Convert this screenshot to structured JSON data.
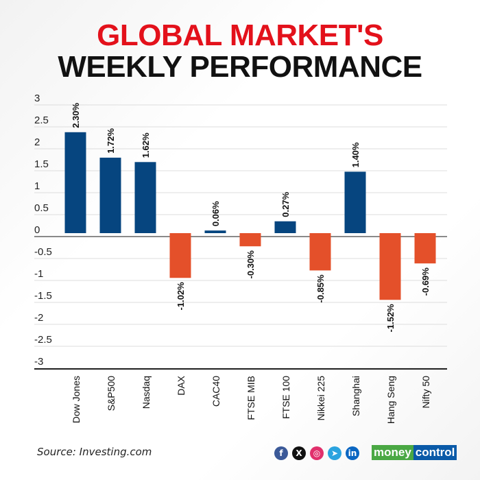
{
  "header": {
    "line1": "GLOBAL MARKET'S",
    "line2": "WEEKLY PERFORMANCE"
  },
  "chart_data": {
    "type": "bar",
    "title": "GLOBAL MARKET'S WEEKLY PERFORMANCE",
    "categories": [
      "Dow Jones",
      "S&P500",
      "Nasdaq",
      "DAX",
      "CAC40",
      "FTSE MIB",
      "FTSE 100",
      "Nikkei 225",
      "Shanghai",
      "Hang Seng",
      "Nifty 50"
    ],
    "values": [
      2.3,
      1.72,
      1.62,
      -1.02,
      0.06,
      -0.3,
      0.27,
      -0.85,
      1.4,
      -1.52,
      -0.69
    ],
    "data_labels": [
      "2.30%",
      "1.72%",
      "1.62%",
      "-1.02%",
      "0.06%",
      "-0.30%",
      "0.27%",
      "-0.85%",
      "1.40%",
      "-1.52%",
      "-0.69%"
    ],
    "ylim": [
      -3,
      3
    ],
    "yticks": [
      "3",
      "2.5",
      "2",
      "1.5",
      "1",
      "0.5",
      "0",
      "-0.5",
      "-1",
      "-1.5",
      "-2",
      "-2.5",
      "-3"
    ],
    "grid": true,
    "colors": {
      "positive": "#06457f",
      "negative": "#e4502a"
    }
  },
  "footer": {
    "source": "Source: Investing.com",
    "brand_left": "money",
    "brand_right": "control",
    "social": [
      {
        "icon": "facebook-icon",
        "glyph": "f",
        "color": "#3b5998"
      },
      {
        "icon": "x-icon",
        "glyph": "X",
        "color": "#111"
      },
      {
        "icon": "instagram-icon",
        "glyph": "◎",
        "color": "#e1306c"
      },
      {
        "icon": "telegram-icon",
        "glyph": "➤",
        "color": "#2aa3df"
      },
      {
        "icon": "linkedin-icon",
        "glyph": "in",
        "color": "#0a66c2"
      }
    ]
  }
}
